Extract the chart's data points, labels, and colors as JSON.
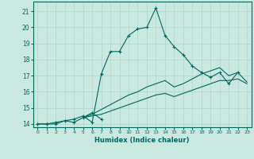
{
  "xlabel": "Humidex (Indice chaleur)",
  "background_color": "#c8e8e0",
  "grid_color": "#aed4cc",
  "line_color": "#006860",
  "xlim": [
    -0.5,
    23.5
  ],
  "ylim": [
    13.8,
    21.6
  ],
  "yticks": [
    14,
    15,
    16,
    17,
    18,
    19,
    20,
    21
  ],
  "xticks": [
    0,
    1,
    2,
    3,
    4,
    5,
    6,
    7,
    8,
    9,
    10,
    11,
    12,
    13,
    14,
    15,
    16,
    17,
    18,
    19,
    20,
    21,
    22,
    23
  ],
  "line1_x": [
    0,
    1,
    2,
    3,
    4,
    5,
    6,
    7,
    8,
    9,
    10,
    11,
    12,
    13,
    14,
    15,
    16,
    17,
    18,
    19,
    20,
    21,
    22
  ],
  "line1_y": [
    14.0,
    14.0,
    14.0,
    14.2,
    14.3,
    14.5,
    14.1,
    17.1,
    18.5,
    18.5,
    19.5,
    19.9,
    20.0,
    21.2,
    19.5,
    18.8,
    18.3,
    17.6,
    17.2,
    16.9,
    17.2,
    16.5,
    17.2
  ],
  "line2_x": [
    0,
    1,
    2,
    3,
    4,
    5,
    6,
    7
  ],
  "line2_y": [
    14.0,
    14.0,
    14.1,
    14.2,
    14.1,
    14.4,
    14.7,
    14.3
  ],
  "line3_x": [
    5,
    6,
    7,
    8,
    9,
    10,
    11,
    12,
    13,
    14,
    15,
    16,
    17,
    18,
    19,
    20,
    21,
    22,
    23
  ],
  "line3_y": [
    14.4,
    14.5,
    14.6,
    14.8,
    15.0,
    15.2,
    15.4,
    15.6,
    15.8,
    15.9,
    15.7,
    15.9,
    16.1,
    16.3,
    16.5,
    16.7,
    16.7,
    16.8,
    16.5
  ],
  "line4_x": [
    5,
    6,
    7,
    8,
    9,
    10,
    11,
    12,
    13,
    14,
    15,
    16,
    17,
    18,
    19,
    20,
    21,
    22,
    23
  ],
  "line4_y": [
    14.4,
    14.6,
    14.9,
    15.2,
    15.5,
    15.8,
    16.0,
    16.3,
    16.5,
    16.7,
    16.3,
    16.5,
    16.8,
    17.1,
    17.3,
    17.5,
    17.0,
    17.2,
    16.6
  ]
}
